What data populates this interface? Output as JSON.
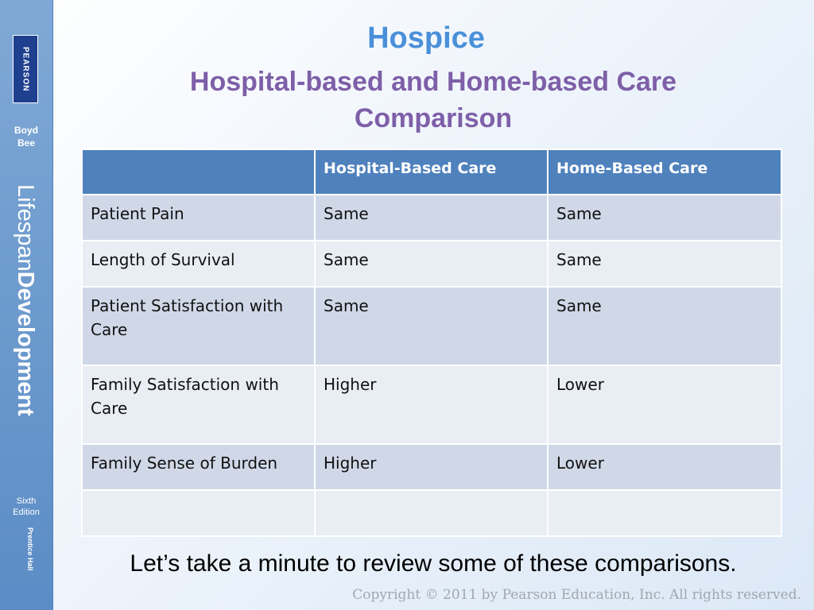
{
  "sidebar": {
    "logo_text": "PEARSON",
    "authors": [
      "Boyd",
      "Bee"
    ],
    "book_title_light": "Lifespan",
    "book_title_bold": "Development",
    "edition": [
      "Sixth",
      "Edition"
    ],
    "publisher": "Prentice Hall"
  },
  "slide": {
    "title": "Hospice",
    "subtitle_line1": "Hospital-based and Home-based Care",
    "subtitle_line2": "Comparison",
    "note": "Let’s take a minute to review some of these comparisons.",
    "copyright": "Copyright © 2011 by Pearson Education, Inc. All rights reserved."
  },
  "table": {
    "headers": [
      "",
      "Hospital-Based Care",
      "Home-Based Care"
    ],
    "rows": [
      [
        "Patient Pain",
        "Same",
        "Same"
      ],
      [
        "Length of Survival",
        "Same",
        "Same"
      ],
      [
        "Patient Satisfaction with Care",
        "Same",
        "Same"
      ],
      [
        "Family Satisfaction with Care",
        "Higher",
        "Lower"
      ],
      [
        "Family Sense of Burden",
        "Higher",
        "Lower"
      ],
      [
        "",
        "",
        ""
      ]
    ]
  },
  "colors": {
    "sidebar": "#5b8cc5",
    "title": "#4a90d9",
    "subtitle": "#7e5fa8",
    "table_header": "#4f81bd",
    "row_dark": "#d0d8e8",
    "row_light": "#e9edf4"
  }
}
